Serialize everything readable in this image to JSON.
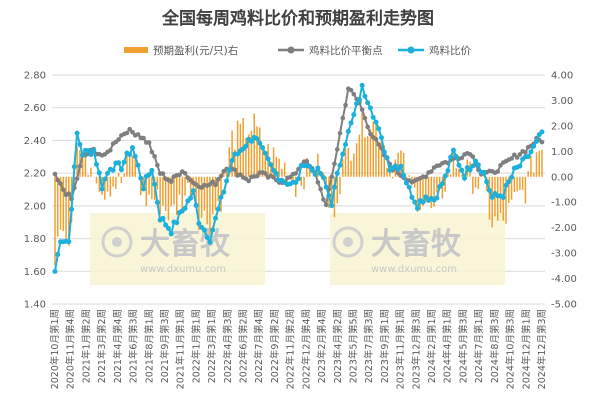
{
  "chart_data": {
    "type": "bar+line",
    "title": "全国每周鸡料比价和预期盈利走势图",
    "legend": [
      "预期盈利(元/只)右",
      "鸡料比价平衡点",
      "鸡料比价"
    ],
    "legend_placement": "top",
    "colors": {
      "profit": "#F0A030",
      "balance": "#7F7F7F",
      "ratio": "#1CB0DC"
    },
    "left_axis": {
      "min": 1.4,
      "max": 2.8,
      "ticks": [
        "1.40",
        "1.60",
        "1.80",
        "2.00",
        "2.20",
        "2.40",
        "2.60",
        "2.80"
      ]
    },
    "right_axis": {
      "min": -5.0,
      "max": 4.0,
      "ticks": [
        "-5.00",
        "-4.00",
        "-3.00",
        "-2.00",
        "-1.00",
        "0.00",
        "1.00",
        "2.00",
        "3.00",
        "4.00"
      ]
    },
    "grid": true,
    "x_tick_labels": [
      "2020年10月第1周",
      "2020年11月第4周",
      "2021年1月第2周",
      "2021年3月第2周",
      "2021年4月第4周",
      "2021年6月第3周",
      "2021年8月第1周",
      "2021年9月第3周",
      "2021年11月第1周",
      "2022年1月第1周",
      "2022年3月第1周",
      "2022年4月第3周",
      "2022年6月第2周",
      "2022年7月第4周",
      "2022年9月第2周",
      "2022年11月第2周",
      "2022年12月第4周",
      "2023年2月第4周",
      "2023年4月第2周",
      "2023年5月第5周",
      "2023年7月第3周",
      "2023年9月第1周",
      "2023年11月第1周",
      "2023年12月第3周",
      "2024年2月第1周",
      "2024年4月第1周",
      "2024年5月第3周",
      "2024年7月第1周",
      "2024年8月第3周",
      "2024年10月第3周",
      "2024年12月第1周",
      "2024年12月第3周"
    ],
    "anchors": {
      "ratio": [
        [
          0,
          1.6
        ],
        [
          2,
          1.8
        ],
        [
          5,
          1.78
        ],
        [
          8,
          2.44
        ],
        [
          10,
          2.32
        ],
        [
          14,
          2.34
        ],
        [
          17,
          2.12
        ],
        [
          20,
          2.24
        ],
        [
          24,
          2.24
        ],
        [
          28,
          2.36
        ],
        [
          32,
          2.12
        ],
        [
          35,
          2.23
        ],
        [
          38,
          1.93
        ],
        [
          42,
          1.85
        ],
        [
          46,
          1.97
        ],
        [
          50,
          2.08
        ],
        [
          52,
          1.91
        ],
        [
          56,
          1.8
        ],
        [
          60,
          2.03
        ],
        [
          64,
          2.28
        ],
        [
          68,
          2.36
        ],
        [
          72,
          2.43
        ],
        [
          76,
          2.3
        ],
        [
          79,
          2.21
        ],
        [
          83,
          2.15
        ],
        [
          87,
          2.13
        ],
        [
          90,
          2.27
        ],
        [
          93,
          2.22
        ],
        [
          96,
          2.2
        ],
        [
          100,
          2.02
        ],
        [
          104,
          2.34
        ],
        [
          108,
          2.55
        ],
        [
          111,
          2.72
        ],
        [
          114,
          2.62
        ],
        [
          118,
          2.4
        ],
        [
          121,
          2.24
        ],
        [
          125,
          2.25
        ],
        [
          128,
          2.1
        ],
        [
          131,
          2.01
        ],
        [
          134,
          2.06
        ],
        [
          137,
          2.04
        ],
        [
          141,
          2.17
        ],
        [
          144,
          2.33
        ],
        [
          148,
          2.19
        ],
        [
          152,
          2.29
        ],
        [
          155,
          2.2
        ],
        [
          158,
          2.05
        ],
        [
          162,
          2.07
        ],
        [
          166,
          2.21
        ],
        [
          170,
          2.28
        ],
        [
          174,
          2.38
        ],
        [
          176,
          2.45
        ]
      ],
      "balance": [
        [
          0,
          2.18
        ],
        [
          3,
          2.1
        ],
        [
          6,
          2.04
        ],
        [
          10,
          2.3
        ],
        [
          14,
          2.34
        ],
        [
          18,
          2.3
        ],
        [
          22,
          2.4
        ],
        [
          26,
          2.46
        ],
        [
          30,
          2.44
        ],
        [
          34,
          2.38
        ],
        [
          38,
          2.2
        ],
        [
          42,
          2.15
        ],
        [
          46,
          2.22
        ],
        [
          50,
          2.14
        ],
        [
          54,
          2.12
        ],
        [
          58,
          2.14
        ],
        [
          62,
          2.24
        ],
        [
          66,
          2.2
        ],
        [
          70,
          2.16
        ],
        [
          74,
          2.2
        ],
        [
          78,
          2.17
        ],
        [
          82,
          2.15
        ],
        [
          86,
          2.18
        ],
        [
          90,
          2.28
        ],
        [
          94,
          2.2
        ],
        [
          98,
          2.0
        ],
        [
          102,
          2.35
        ],
        [
          106,
          2.72
        ],
        [
          110,
          2.63
        ],
        [
          114,
          2.45
        ],
        [
          118,
          2.34
        ],
        [
          122,
          2.23
        ],
        [
          126,
          2.18
        ],
        [
          130,
          2.14
        ],
        [
          134,
          2.19
        ],
        [
          138,
          2.25
        ],
        [
          142,
          2.27
        ],
        [
          146,
          2.3
        ],
        [
          150,
          2.33
        ],
        [
          154,
          2.2
        ],
        [
          158,
          2.2
        ],
        [
          162,
          2.25
        ],
        [
          166,
          2.3
        ],
        [
          170,
          2.34
        ],
        [
          174,
          2.4
        ],
        [
          176,
          2.4
        ]
      ],
      "profit": [
        [
          0,
          -3.7
        ],
        [
          2,
          -1.5
        ],
        [
          5,
          -2.5
        ],
        [
          8,
          1.2
        ],
        [
          11,
          0.6
        ],
        [
          14,
          0.5
        ],
        [
          17,
          -0.5
        ],
        [
          20,
          -0.3
        ],
        [
          24,
          -0.2
        ],
        [
          28,
          1.0
        ],
        [
          32,
          -0.9
        ],
        [
          35,
          -0.8
        ],
        [
          38,
          -1.0
        ],
        [
          42,
          -1.5
        ],
        [
          46,
          -0.8
        ],
        [
          50,
          -0.3
        ],
        [
          52,
          -1.5
        ],
        [
          56,
          -1.7
        ],
        [
          60,
          -0.8
        ],
        [
          64,
          1.5
        ],
        [
          68,
          1.8
        ],
        [
          72,
          2.0
        ],
        [
          76,
          1.0
        ],
        [
          79,
          0.8
        ],
        [
          83,
          0.4
        ],
        [
          87,
          -0.3
        ],
        [
          90,
          0.1
        ],
        [
          93,
          0.3
        ],
        [
          96,
          0.4
        ],
        [
          100,
          -1.6
        ],
        [
          104,
          0.4
        ],
        [
          108,
          1.5
        ],
        [
          111,
          2.1
        ],
        [
          114,
          2.2
        ],
        [
          118,
          1.7
        ],
        [
          121,
          0.4
        ],
        [
          125,
          0.8
        ],
        [
          128,
          -0.4
        ],
        [
          131,
          -0.8
        ],
        [
          134,
          -1.0
        ],
        [
          137,
          -1.5
        ],
        [
          141,
          -0.2
        ],
        [
          144,
          0.6
        ],
        [
          148,
          0.3
        ],
        [
          152,
          -0.2
        ],
        [
          155,
          -0.4
        ],
        [
          158,
          -1.8
        ],
        [
          162,
          -1.8
        ],
        [
          166,
          -1.0
        ],
        [
          170,
          -0.5
        ],
        [
          174,
          1.0
        ],
        [
          176,
          1.2
        ]
      ]
    }
  },
  "watermark": {
    "brand": "大畜牧",
    "url": "www.dxumu.com"
  }
}
